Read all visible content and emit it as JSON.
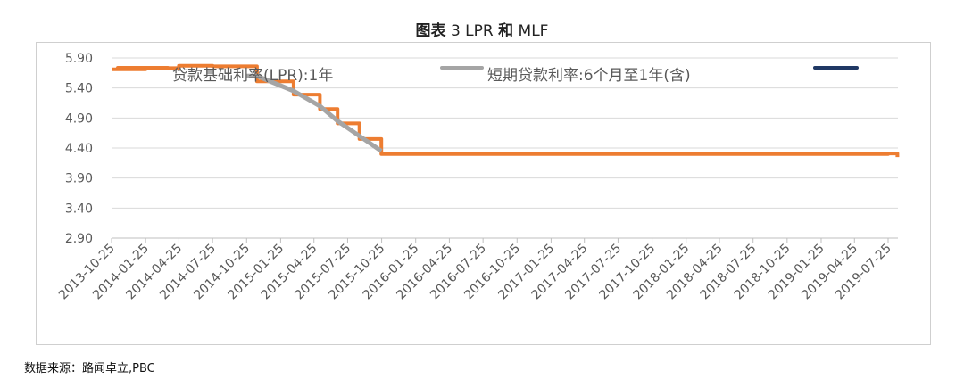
{
  "title": {
    "prefix": "图表",
    "number": "3",
    "lpr": "LPR",
    "and": "和",
    "mlf": "MLF"
  },
  "source": "数据来源：路闻卓立,PBC",
  "chart_data": {
    "type": "line",
    "title": "图表 3 LPR 和 MLF",
    "xlabel": "",
    "ylabel": "",
    "ylim": [
      2.9,
      5.9
    ],
    "yticks": [
      "5.90",
      "5.40",
      "4.90",
      "4.40",
      "3.90",
      "3.40",
      "2.90"
    ],
    "xticks": [
      "2013-10-25",
      "2014-01-25",
      "2014-04-25",
      "2014-07-25",
      "2014-10-25",
      "2015-01-25",
      "2015-04-25",
      "2015-07-25",
      "2015-10-25",
      "2016-01-25",
      "2016-04-25",
      "2016-07-25",
      "2016-10-25",
      "2017-01-25",
      "2017-04-25",
      "2017-07-25",
      "2017-10-25",
      "2018-01-25",
      "2018-04-25",
      "2018-07-25",
      "2018-10-25",
      "2019-01-25",
      "2019-04-25",
      "2019-07-25"
    ],
    "grid": true,
    "legend_position": "top",
    "series": [
      {
        "name": "贷款基础利率(LPR):1年",
        "color": "#ED7D31",
        "style": "step",
        "points": [
          [
            "2013-10-25",
            5.71
          ],
          [
            "2014-01-25",
            5.73
          ],
          [
            "2014-04-25",
            5.77
          ],
          [
            "2014-07-25",
            5.76
          ],
          [
            "2014-11-22",
            5.51
          ],
          [
            "2015-03-01",
            5.29
          ],
          [
            "2015-05-11",
            5.05
          ],
          [
            "2015-06-28",
            4.81
          ],
          [
            "2015-08-26",
            4.55
          ],
          [
            "2015-10-24",
            4.3
          ],
          [
            "2018-01-25",
            4.3
          ],
          [
            "2019-07-25",
            4.31
          ],
          [
            "2019-08-19",
            4.25
          ]
        ]
      },
      {
        "name": "短期贷款利率:6个月至1年(含)",
        "color": "#A5A5A5",
        "style": "line",
        "points": [
          [
            "2014-10-25",
            5.6
          ],
          [
            "2014-11-22",
            5.6
          ],
          [
            "2015-03-01",
            5.35
          ],
          [
            "2015-05-11",
            5.1
          ],
          [
            "2015-06-28",
            4.85
          ],
          [
            "2015-08-26",
            4.6
          ],
          [
            "2015-10-24",
            4.35
          ]
        ]
      },
      {
        "name": "",
        "color": "#203864",
        "style": "line",
        "points": []
      }
    ]
  }
}
